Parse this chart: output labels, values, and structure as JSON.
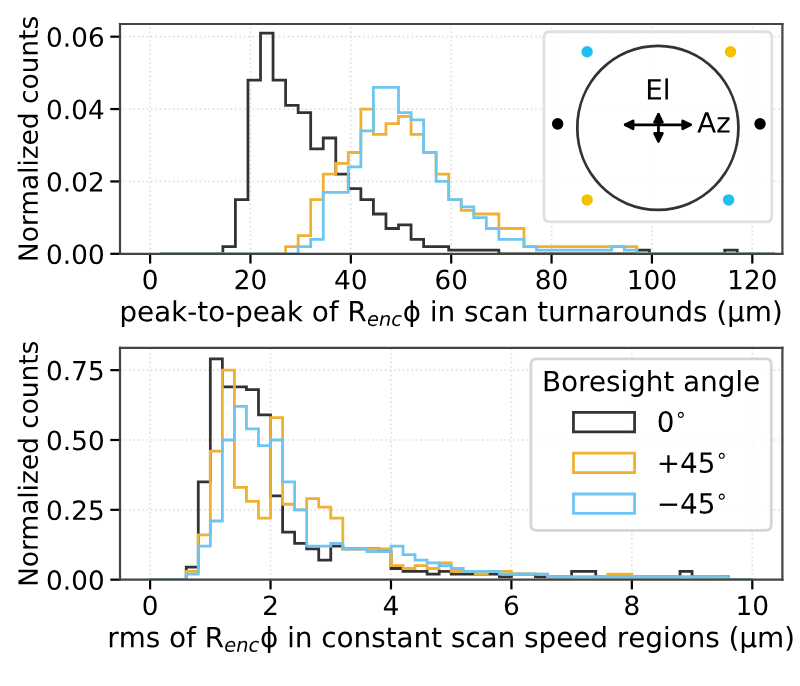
{
  "chart_data": [
    {
      "type": "histogram",
      "xlabel": "peak-to-peak of R$_{enc}$ϕ in scan turnarounds (μm)",
      "ylabel": "Normalized counts",
      "annotations": [
        "El",
        "Az"
      ],
      "bins": [
        2,
        4.5,
        7,
        9.5,
        12,
        14.5,
        17,
        19.5,
        22,
        24.5,
        27,
        29.5,
        32,
        34.5,
        37,
        39.5,
        42,
        44.5,
        47,
        49.5,
        52,
        54.5,
        57,
        59.5,
        62,
        64.5,
        67,
        69.5,
        72,
        74.5,
        77,
        79.5,
        82,
        84.5,
        87,
        89.5,
        92,
        94.5,
        97,
        99.5,
        102,
        104.5,
        107,
        109.5,
        112,
        114.5,
        117,
        119.5,
        122,
        124.5
      ],
      "series": [
        {
          "color": "#333333",
          "values": [
            0,
            0,
            0,
            0,
            0,
            0.002,
            0.015,
            0.048,
            0.061,
            0.048,
            0.041,
            0.039,
            0.029,
            0.032,
            0.022,
            0.018,
            0.015,
            0.011,
            0.007,
            0.008,
            0.004,
            0.002,
            0.002,
            0.001,
            0.001,
            0.001,
            0.001,
            0,
            0,
            0,
            0,
            0,
            0,
            0,
            0,
            0,
            0,
            0,
            0.001,
            0,
            0,
            0,
            0,
            0,
            0,
            0.001,
            0,
            0,
            0
          ]
        },
        {
          "color": "#f0b030",
          "values": [
            0,
            0,
            0,
            0,
            0,
            0,
            0,
            0,
            0,
            0,
            0.002,
            0.005,
            0.015,
            0.022,
            0.025,
            0.028,
            0.04,
            0.033,
            0.036,
            0.038,
            0.033,
            0.028,
            0.022,
            0.015,
            0.012,
            0.011,
            0.011,
            0.007,
            0.007,
            0.002,
            0.002,
            0.002,
            0.002,
            0.002,
            0.002,
            0.002,
            0.002,
            0.002,
            0,
            0,
            0,
            0,
            0,
            0,
            0,
            0,
            0,
            0,
            0
          ]
        },
        {
          "color": "#6ec6f0",
          "values": [
            0,
            0,
            0,
            0,
            0,
            0,
            0,
            0,
            0,
            0,
            0,
            0.002,
            0.004,
            0.017,
            0.017,
            0.024,
            0.034,
            0.046,
            0.046,
            0.039,
            0.037,
            0.028,
            0.02,
            0.015,
            0.013,
            0.01,
            0.007,
            0.004,
            0.004,
            0.002,
            0.001,
            0.001,
            0.001,
            0.001,
            0.001,
            0.001,
            0.002,
            0.001,
            0,
            0,
            0,
            0,
            0,
            0,
            0,
            0,
            0,
            0,
            0
          ]
        }
      ],
      "xlim": [
        -6,
        126
      ],
      "xticks": [
        0,
        20,
        40,
        60,
        80,
        100,
        120
      ],
      "ylim": [
        0,
        0.0635
      ],
      "yticks": [
        {
          "value": 0,
          "label": "0.00"
        },
        {
          "value": 0.02,
          "label": "0.02"
        },
        {
          "value": 0.04,
          "label": "0.04"
        },
        {
          "value": 0.06,
          "label": "0.06"
        }
      ],
      "grid": true
    },
    {
      "type": "histogram",
      "xlabel": "rms of R$_{enc}$ϕ in constant scan speed regions (μm)",
      "ylabel": "Normalized counts",
      "legend_title": "Boresight angle",
      "legend": "top right",
      "bins": [
        0,
        0.2,
        0.4,
        0.6,
        0.8,
        1,
        1.2,
        1.4,
        1.6,
        1.8,
        2,
        2.2,
        2.4,
        2.6,
        2.8,
        3,
        3.2,
        3.4,
        3.6,
        3.8,
        4,
        4.2,
        4.4,
        4.6,
        4.8,
        5,
        5.2,
        5.4,
        5.6,
        5.8,
        6,
        6.2,
        6.4,
        6.6,
        6.8,
        7,
        7.2,
        7.4,
        7.6,
        7.8,
        8,
        8.2,
        8.4,
        8.6,
        8.8,
        9,
        9.2,
        9.4,
        9.6,
        9.8,
        10
      ],
      "series": [
        {
          "name": "0$^{∘}$",
          "color": "#333333",
          "values": [
            0,
            0,
            0,
            0.045,
            0.35,
            0.79,
            0.69,
            0.69,
            0.68,
            0.59,
            0.3,
            0.17,
            0.13,
            0.11,
            0.07,
            0.12,
            0.11,
            0.11,
            0.11,
            0.1,
            0.04,
            0.03,
            0.03,
            0.02,
            0.03,
            0.02,
            0.02,
            0.02,
            0.02,
            0.01,
            0.02,
            0.02,
            0.01,
            0.01,
            0.01,
            0.03,
            0.03,
            0.01,
            0.01,
            0.01,
            0.01,
            0.01,
            0.01,
            0.01,
            0.03,
            0.01,
            0.01,
            0.01,
            0,
            0
          ]
        },
        {
          "name": "+45$^{∘}$",
          "color": "#f0b030",
          "values": [
            0,
            0,
            0,
            0.03,
            0.16,
            0.46,
            0.75,
            0.33,
            0.28,
            0.22,
            0.58,
            0.27,
            0.25,
            0.29,
            0.26,
            0.22,
            0.11,
            0.11,
            0.11,
            0.11,
            0.05,
            0.04,
            0.05,
            0.04,
            0.06,
            0.03,
            0.03,
            0.02,
            0.03,
            0.03,
            0.02,
            0.02,
            0.02,
            0.01,
            0.01,
            0.01,
            0.01,
            0.01,
            0.02,
            0.02,
            0.01,
            0.01,
            0.01,
            0.01,
            0.01,
            0.01,
            0.01,
            0,
            0,
            0
          ]
        },
        {
          "name": "−45$^{∘}$",
          "color": "#6ec6f0",
          "values": [
            0,
            0,
            0,
            0.02,
            0.12,
            0.21,
            0.5,
            0.62,
            0.54,
            0.48,
            0.5,
            0.35,
            0.25,
            0.12,
            0.12,
            0.13,
            0.11,
            0.11,
            0.1,
            0.1,
            0.12,
            0.09,
            0.07,
            0.06,
            0.05,
            0.04,
            0.03,
            0.03,
            0.03,
            0.02,
            0.02,
            0.02,
            0.02,
            0.01,
            0.01,
            0.01,
            0.01,
            0.01,
            0.01,
            0.01,
            0.01,
            0.01,
            0.01,
            0.01,
            0.01,
            0.01,
            0.01,
            0.01,
            0,
            0
          ]
        }
      ],
      "xlim": [
        -0.5,
        10.5
      ],
      "xticks": [
        0,
        2,
        4,
        6,
        8,
        10
      ],
      "ylim": [
        0,
        0.83
      ],
      "yticks": [
        {
          "value": 0,
          "label": "0.00"
        },
        {
          "value": 0.25,
          "label": "0.25"
        },
        {
          "value": 0.5,
          "label": "0.50"
        },
        {
          "value": 0.75,
          "label": "0.75"
        }
      ],
      "grid": true
    }
  ]
}
